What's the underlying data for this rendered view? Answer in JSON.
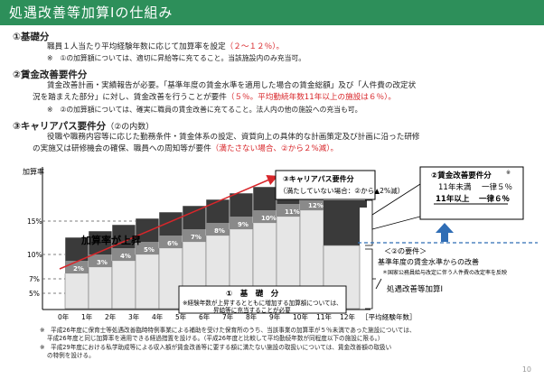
{
  "title": "処遇改善等加算Ⅰの仕組み",
  "sections": {
    "s1": {
      "heading": "①基礎分",
      "line1_a": "職員１人当たり平均経験年数に応じて加算率を設定",
      "line1_b": "（２～１２％）。",
      "note": "※　①の加算額については、適切に昇給等に充てること。当該施設内のみ充当可。"
    },
    "s2": {
      "heading": "②賃金改善要件分",
      "line1": "賃金改善計画・実績報告が必要。「基準年度の賃金水準を適用した場合の賃金総額」及び「人件費の改定状",
      "line2_a": "況を踏まえた部分」に対し、賃金改善を行うことが要件",
      "line2_b": "（５％。平均勤続年数11年以上の施設は６％）。",
      "note": "※　②の加算額については、確実に職員の賃金改善に充てること。法人内の他の施設への充当も可。"
    },
    "s3": {
      "heading_a": "③キャリアパス要件分",
      "heading_b": "（②の内数）",
      "line1": "役職や職務内容等に応じた勤務条件・賃金体系の設定、資質向上の具体的な計画策定及び計画に沿った研修",
      "line2_a": "の実施又は研修機会の確保、職員への周知等が要件",
      "line2_b": "（満たさない場合、②から２%減）。"
    }
  },
  "chart": {
    "y_axis_title": "加算率",
    "y_ticks": [
      "15%",
      "10%",
      "7%",
      "5%"
    ],
    "x_ticks": [
      "0年",
      "1年",
      "2年",
      "3年",
      "4年",
      "5年",
      "6年",
      "7年",
      "8年",
      "9年",
      "10年",
      "11年",
      "12年"
    ],
    "x_axis_title": "［平均経験年数］",
    "base_rates": [
      "2%",
      "3%",
      "4%",
      "5%",
      "6%",
      "7%",
      "8%",
      "9%",
      "10%",
      "11%",
      "12%"
    ],
    "rising_label": "加算率が上昇",
    "career_box": {
      "line1": "③キャリアパス要件分",
      "line2": "（満たしていない場合：②から▲2%減）"
    },
    "wage_box": {
      "title": "②賃金改善要件分",
      "title_mark": "※",
      "row1_label": "11年未満",
      "row1_value": "一律５％",
      "row2_label": "11年以上",
      "row2_value": "一律６％"
    },
    "requirement": {
      "heading": "＜②の要件＞",
      "line1": "基準年度の賃金水準からの改善",
      "line2": "＊国家公務員給与改定に伴う人件費の改定率を反映"
    },
    "base_box": {
      "title": "①　基　礎　分",
      "line1": "※経験年数が上昇するとともに増加する加算額については、",
      "line2": "昇給等に充当することが必要"
    },
    "total_label": "処遇改善等加算Ⅰ"
  },
  "footnotes": {
    "n1": "※　平成26年度に保育士等処遇改善臨時特例事業による補助を受けた保育所のうち、当該事業の加算率が５％未満であった施設については、",
    "n2": "平成26年度と同じ加算率を適用できる経過措置を設ける。（平成26年度と比較して平均勤続年数が同程度以下の施設に限る。）",
    "n3": "※　平成29年度における私学助成等による収入額が賃金改善等に要する額に満たない施設の取扱いについては、賃金改善額の取扱い",
    "n4": "の特例を設ける。"
  },
  "page_number": "10",
  "colors": {
    "title_bg": "#2d8f5a",
    "accent_red": "#d8262a",
    "arrow_blue": "#2f6db5",
    "bar_dark": "#3a3a3a"
  }
}
